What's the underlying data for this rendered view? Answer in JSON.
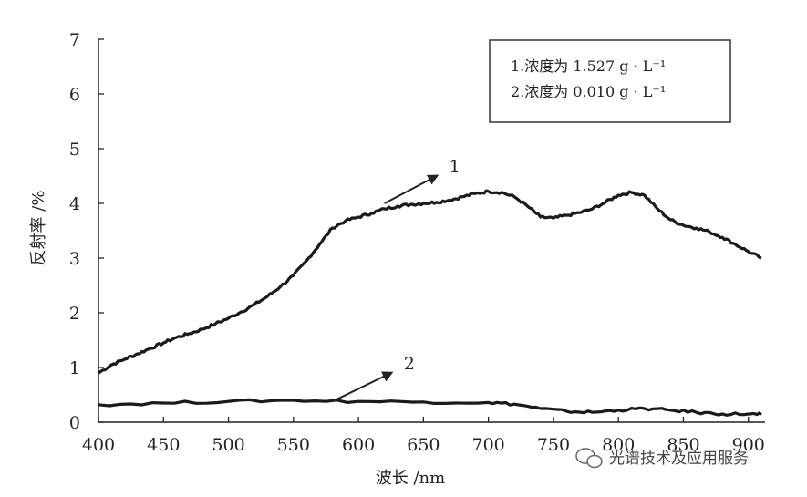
{
  "chart_data": {
    "type": "line",
    "xlabel": "波长 /nm",
    "ylabel": "反射率 /%",
    "xlim": [
      400,
      910
    ],
    "ylim": [
      0,
      7
    ],
    "xticks": [
      400,
      450,
      500,
      550,
      600,
      650,
      700,
      750,
      800,
      850,
      900
    ],
    "yticks": [
      0,
      1,
      2,
      3,
      4,
      5,
      6,
      7
    ],
    "grid": false,
    "legend_position": "top-right",
    "legend": [
      "1.浓度为 1.527 g · L⁻¹",
      "2.浓度为 0.010 g · L⁻¹"
    ],
    "series": [
      {
        "label": "1",
        "x": [
          400,
          410,
          420,
          430,
          440,
          450,
          460,
          470,
          480,
          490,
          500,
          510,
          520,
          530,
          540,
          550,
          560,
          570,
          580,
          590,
          600,
          610,
          620,
          630,
          640,
          650,
          660,
          670,
          680,
          690,
          700,
          710,
          720,
          730,
          740,
          750,
          760,
          770,
          780,
          790,
          800,
          810,
          820,
          830,
          840,
          850,
          860,
          870,
          880,
          890,
          900,
          910
        ],
        "y": [
          0.9,
          1.05,
          1.15,
          1.25,
          1.35,
          1.45,
          1.55,
          1.62,
          1.7,
          1.8,
          1.9,
          2.02,
          2.15,
          2.3,
          2.48,
          2.68,
          2.95,
          3.25,
          3.55,
          3.68,
          3.75,
          3.82,
          3.9,
          3.95,
          3.98,
          4.0,
          4.02,
          4.06,
          4.12,
          4.18,
          4.22,
          4.2,
          4.12,
          3.95,
          3.75,
          3.73,
          3.78,
          3.83,
          3.9,
          4.02,
          4.15,
          4.2,
          4.15,
          3.9,
          3.7,
          3.6,
          3.55,
          3.48,
          3.38,
          3.25,
          3.12,
          3.0
        ]
      },
      {
        "label": "2",
        "x": [
          400,
          450,
          500,
          550,
          600,
          650,
          700,
          720,
          740,
          760,
          780,
          800,
          820,
          840,
          860,
          880,
          900,
          910
        ],
        "y": [
          0.32,
          0.35,
          0.38,
          0.4,
          0.38,
          0.37,
          0.36,
          0.33,
          0.25,
          0.2,
          0.18,
          0.22,
          0.25,
          0.22,
          0.18,
          0.15,
          0.15,
          0.14
        ]
      }
    ],
    "annotations": [
      {
        "label": "1",
        "arrow_from": [
          620,
          4.0
        ],
        "arrow_to": [
          660,
          4.5
        ]
      },
      {
        "label": "2",
        "arrow_from": [
          580,
          0.38
        ],
        "arrow_to": [
          625,
          0.9
        ]
      }
    ]
  },
  "watermark": {
    "text": "光谱技术及应用服务",
    "icon": "wechat-icon"
  }
}
